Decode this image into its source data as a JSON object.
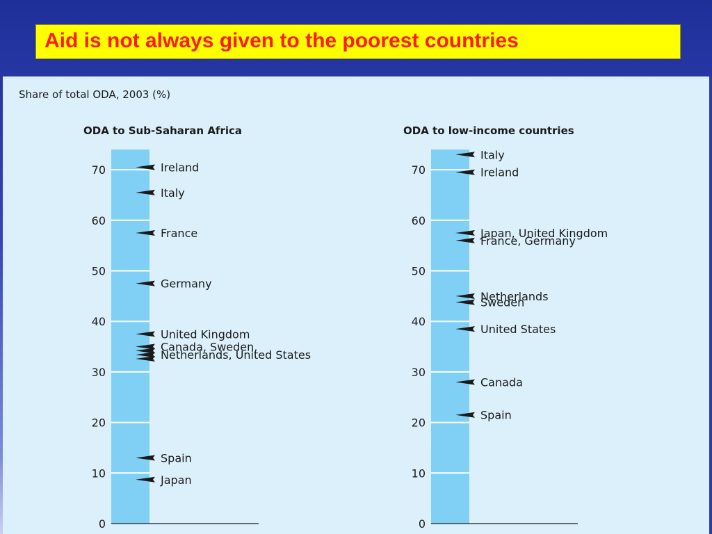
{
  "slide": {
    "title": "Aid is not always given to the poorest countries",
    "colors": {
      "title_bg": "#ffff00",
      "title_text": "#ff1a1a",
      "bar_fill": "#80cff4",
      "content_bg": "#dcf0fb"
    }
  },
  "chart_data": [
    {
      "type": "bar",
      "subtitle": "Share of total ODA, 2003 (%)",
      "title": "ODA to Sub-Saharan Africa",
      "ylim": [
        0,
        74
      ],
      "ticks": [
        0,
        10,
        20,
        30,
        40,
        50,
        60,
        70
      ],
      "grid": true,
      "markers": [
        {
          "value": 70.5,
          "labeled": true,
          "label": "Ireland"
        },
        {
          "value": 65.5,
          "labeled": true,
          "label": "Italy"
        },
        {
          "value": 57.5,
          "labeled": true,
          "label": "France"
        },
        {
          "value": 47.5,
          "labeled": true,
          "label": "Germany"
        },
        {
          "value": 37.5,
          "labeled": true,
          "label": "United Kingdom"
        },
        {
          "value": 35.0,
          "labeled": true,
          "label": "Canada, Sweden,"
        },
        {
          "value": 34.2,
          "labeled": false,
          "label": ""
        },
        {
          "value": 33.4,
          "labeled": true,
          "label": "Netherlands, United States"
        },
        {
          "value": 32.6,
          "labeled": false,
          "label": ""
        },
        {
          "value": 13.0,
          "labeled": true,
          "label": "Spain"
        },
        {
          "value": 8.7,
          "labeled": true,
          "label": "Japan"
        }
      ]
    },
    {
      "type": "bar",
      "title": "ODA to low-income countries",
      "ylim": [
        0,
        74
      ],
      "ticks": [
        0,
        10,
        20,
        30,
        40,
        50,
        60,
        70
      ],
      "grid": true,
      "markers": [
        {
          "value": 73.0,
          "labeled": true,
          "label": "Italy"
        },
        {
          "value": 69.5,
          "labeled": true,
          "label": "Ireland"
        },
        {
          "value": 57.5,
          "labeled": true,
          "label": "Japan, United Kingdom"
        },
        {
          "value": 56.0,
          "labeled": true,
          "label": "France, Germany"
        },
        {
          "value": 45.0,
          "labeled": true,
          "label": "Netherlands"
        },
        {
          "value": 43.8,
          "labeled": true,
          "label": "Sweden"
        },
        {
          "value": 38.5,
          "labeled": true,
          "label": "United States"
        },
        {
          "value": 28.0,
          "labeled": true,
          "label": "Canada"
        },
        {
          "value": 21.5,
          "labeled": true,
          "label": "Spain"
        }
      ]
    }
  ]
}
